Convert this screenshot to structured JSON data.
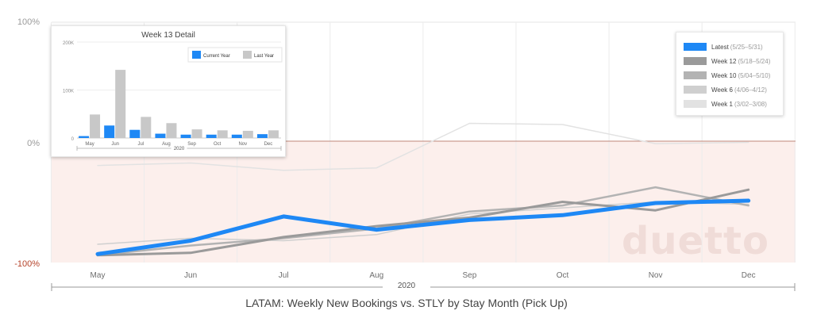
{
  "chart_data": [
    {
      "type": "line",
      "title": "LATAM: Weekly New Bookings  vs. STLY by Stay Month (Pick Up)",
      "xlabel": "2020",
      "ylabel": "",
      "categories": [
        "May",
        "Jun",
        "Jul",
        "Aug",
        "Sep",
        "Oct",
        "Nov",
        "Dec"
      ],
      "ylim": [
        -100,
        100
      ],
      "yticks": [
        "100%",
        "0%",
        "-100%"
      ],
      "series": [
        {
          "name": "Week 1",
          "range": "(3/02–3/08)",
          "color": "#e2e2e2",
          "width": 1.5,
          "values": [
            -20,
            -18,
            -24,
            -22,
            15,
            14,
            -2,
            -1
          ]
        },
        {
          "name": "Week 6",
          "range": "(4/06–4/12)",
          "color": "#cfcfcf",
          "width": 1.5,
          "values": [
            -85,
            -80,
            -82,
            -77,
            -60,
            -55,
            -50,
            -52
          ]
        },
        {
          "name": "Week 10",
          "range": "(5/04–5/10)",
          "color": "#b3b3b3",
          "width": 2.5,
          "values": [
            -94,
            -86,
            -80,
            -72,
            -58,
            -53,
            -38,
            -53
          ]
        },
        {
          "name": "Week 12",
          "range": "(5/18–5/24)",
          "color": "#9a9a9a",
          "width": 3,
          "values": [
            -94,
            -92,
            -79,
            -70,
            -63,
            -50,
            -57,
            -40
          ]
        },
        {
          "name": "Latest",
          "range": "(5/25–5/31)",
          "color": "#1e88f5",
          "width": 5,
          "values": [
            -93,
            -82,
            -62,
            -73,
            -65,
            -61,
            -51,
            -49
          ]
        }
      ]
    },
    {
      "type": "bar",
      "title": "Week 13 Detail",
      "xlabel": "2020",
      "categories": [
        "May",
        "Jun",
        "Jul",
        "Aug",
        "Sep",
        "Oct",
        "Nov",
        "Dec"
      ],
      "ylim": [
        0,
        200000
      ],
      "yticks": [
        "200K",
        "100K",
        "0"
      ],
      "series": [
        {
          "name": "Current Year",
          "color": "#1e88f5",
          "values": [
            4000,
            26000,
            17000,
            9000,
            7000,
            7000,
            7000,
            8000
          ]
        },
        {
          "name": "Last Year",
          "color": "#c8c8c8",
          "values": [
            49000,
            142000,
            44000,
            31000,
            18000,
            16000,
            15000,
            16000
          ]
        }
      ]
    }
  ],
  "watermark": "duetto"
}
